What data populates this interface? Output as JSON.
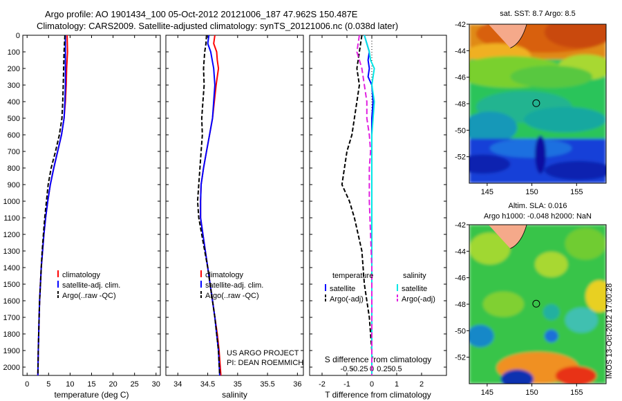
{
  "header": {
    "line1": "Argo profile: AO 1901434_100 05-Oct-2012 20121006_187 47.962S 150.487E",
    "line2": "Climatology: CARS2009. Satellite-adjusted climatology: synTS_20121006.nc (0.038d later)"
  },
  "credits": {
    "line1": "US ARGO PROJECT",
    "line2": "PI: DEAN ROEMMICH"
  },
  "stamp": "IMOS 13-Oct-2012 17:00:28",
  "colors": {
    "red": "#ff0000",
    "blue": "#0000ff",
    "black": "#000000",
    "cyan": "#00e5e5",
    "magenta": "#e020e0"
  },
  "chart_data": [
    {
      "type": "line",
      "name": "temperature-profile",
      "xlabel": "temperature (deg C)",
      "ylabel": "",
      "xlim": [
        -1,
        31
      ],
      "ylim": [
        2050,
        0
      ],
      "xticks": [
        0,
        5,
        10,
        15,
        20,
        25,
        30
      ],
      "yticks": [
        0,
        100,
        200,
        300,
        400,
        500,
        600,
        700,
        800,
        900,
        1000,
        1100,
        1200,
        1300,
        1400,
        1500,
        1600,
        1700,
        1800,
        1900,
        2000
      ],
      "legend": [
        "climatology",
        "satellite-adj. clim.",
        "Argo(..raw -QC)"
      ],
      "series": [
        {
          "name": "climatology",
          "color": "red",
          "dash": "",
          "points": [
            [
              9.3,
              0
            ],
            [
              9.4,
              100
            ],
            [
              9.2,
              200
            ],
            [
              9.1,
              300
            ],
            [
              8.9,
              400
            ],
            [
              8.6,
              500
            ],
            [
              8.0,
              600
            ],
            [
              7.1,
              700
            ],
            [
              6.2,
              800
            ],
            [
              5.4,
              900
            ],
            [
              4.8,
              1000
            ],
            [
              4.3,
              1100
            ],
            [
              3.9,
              1200
            ],
            [
              3.6,
              1300
            ],
            [
              3.3,
              1400
            ],
            [
              3.1,
              1500
            ],
            [
              2.9,
              1600
            ],
            [
              2.8,
              1700
            ],
            [
              2.7,
              1800
            ],
            [
              2.6,
              1900
            ],
            [
              2.5,
              2050
            ]
          ]
        },
        {
          "name": "satellite-adj. clim.",
          "color": "blue",
          "dash": "",
          "points": [
            [
              8.9,
              0
            ],
            [
              8.9,
              100
            ],
            [
              8.9,
              200
            ],
            [
              8.9,
              300
            ],
            [
              8.8,
              400
            ],
            [
              8.6,
              500
            ],
            [
              8.0,
              600
            ],
            [
              7.1,
              700
            ],
            [
              6.2,
              800
            ],
            [
              5.4,
              900
            ],
            [
              4.8,
              1000
            ],
            [
              4.3,
              1100
            ],
            [
              3.9,
              1200
            ],
            [
              3.6,
              1300
            ],
            [
              3.3,
              1400
            ],
            [
              3.1,
              1500
            ],
            [
              2.9,
              1600
            ],
            [
              2.8,
              1700
            ],
            [
              2.7,
              1800
            ],
            [
              2.6,
              1900
            ],
            [
              2.5,
              2050
            ]
          ]
        },
        {
          "name": "Argo(..raw -QC)",
          "color": "black",
          "dash": "6,3",
          "points": [
            [
              8.8,
              0
            ],
            [
              8.6,
              100
            ],
            [
              8.5,
              200
            ],
            [
              8.4,
              300
            ],
            [
              8.3,
              400
            ],
            [
              8.1,
              500
            ],
            [
              7.5,
              600
            ],
            [
              6.6,
              700
            ],
            [
              5.6,
              800
            ],
            [
              4.9,
              900
            ],
            [
              4.5,
              1000
            ],
            [
              4.1,
              1100
            ],
            [
              3.8,
              1200
            ],
            [
              3.5,
              1300
            ],
            [
              3.3,
              1400
            ],
            [
              3.1,
              1500
            ],
            [
              2.9,
              1600
            ],
            [
              2.8,
              1700
            ],
            [
              2.7,
              1800
            ],
            [
              2.6,
              1900
            ],
            [
              2.5,
              2050
            ]
          ]
        }
      ]
    },
    {
      "type": "line",
      "name": "salinity-profile",
      "xlabel": "salinity",
      "ylabel": "",
      "xlim": [
        33.8,
        36.1
      ],
      "ylim": [
        2050,
        0
      ],
      "xticks": [
        34,
        34.5,
        35,
        35.5,
        36
      ],
      "xticklabels": [
        "34",
        "34.5",
        "35",
        "35.5",
        "36"
      ],
      "legend": [
        "climatology",
        "satellite-adj. clim.",
        "Argo(..raw -QC)"
      ],
      "series": [
        {
          "name": "climatology",
          "color": "red",
          "dash": "",
          "points": [
            [
              34.62,
              0
            ],
            [
              34.6,
              50
            ],
            [
              34.65,
              100
            ],
            [
              34.66,
              150
            ],
            [
              34.68,
              200
            ],
            [
              34.64,
              300
            ],
            [
              34.61,
              400
            ],
            [
              34.58,
              500
            ],
            [
              34.53,
              600
            ],
            [
              34.48,
              700
            ],
            [
              34.43,
              800
            ],
            [
              34.39,
              900
            ],
            [
              34.38,
              1000
            ],
            [
              34.38,
              1100
            ],
            [
              34.42,
              1200
            ],
            [
              34.46,
              1300
            ],
            [
              34.5,
              1400
            ],
            [
              34.54,
              1500
            ],
            [
              34.58,
              1600
            ],
            [
              34.62,
              1700
            ],
            [
              34.66,
              1800
            ],
            [
              34.69,
              1900
            ],
            [
              34.72,
              2050
            ]
          ]
        },
        {
          "name": "satellite-adj. clim.",
          "color": "blue",
          "dash": "",
          "points": [
            [
              34.52,
              0
            ],
            [
              34.5,
              50
            ],
            [
              34.55,
              100
            ],
            [
              34.6,
              200
            ],
            [
              34.62,
              300
            ],
            [
              34.6,
              400
            ],
            [
              34.58,
              500
            ],
            [
              34.53,
              600
            ],
            [
              34.48,
              700
            ],
            [
              34.43,
              800
            ],
            [
              34.39,
              900
            ],
            [
              34.38,
              1000
            ],
            [
              34.38,
              1100
            ],
            [
              34.42,
              1200
            ],
            [
              34.46,
              1300
            ],
            [
              34.5,
              1400
            ],
            [
              34.54,
              1500
            ],
            [
              34.58,
              1600
            ],
            [
              34.62,
              1700
            ],
            [
              34.65,
              1800
            ],
            [
              34.68,
              1900
            ],
            [
              34.7,
              2050
            ]
          ]
        },
        {
          "name": "Argo(..raw -QC)",
          "color": "black",
          "dash": "6,3",
          "points": [
            [
              34.48,
              0
            ],
            [
              34.47,
              50
            ],
            [
              34.45,
              100
            ],
            [
              34.43,
              200
            ],
            [
              34.44,
              300
            ],
            [
              34.42,
              400
            ],
            [
              34.4,
              500
            ],
            [
              34.41,
              600
            ],
            [
              34.39,
              700
            ],
            [
              34.37,
              800
            ],
            [
              34.35,
              900
            ],
            [
              34.33,
              1000
            ],
            [
              34.35,
              1100
            ],
            [
              34.4,
              1200
            ],
            [
              34.45,
              1300
            ],
            [
              34.5,
              1400
            ],
            [
              34.54,
              1500
            ],
            [
              34.58,
              1600
            ],
            [
              34.62,
              1700
            ],
            [
              34.65,
              1800
            ],
            [
              34.68,
              1900
            ],
            [
              34.7,
              2050
            ]
          ]
        }
      ]
    },
    {
      "type": "line",
      "name": "difference-profile",
      "xlabel": "T difference from climatology",
      "top_label": "S difference from climatology",
      "ylabel": "",
      "xlim": [
        -2.5,
        3
      ],
      "ylim": [
        2050,
        0
      ],
      "xticks": [
        -2,
        -1,
        0,
        1,
        2
      ],
      "xticklabels": [
        "-2",
        "-1",
        "0",
        "1",
        "2"
      ],
      "sticks": [
        -1,
        -0.5,
        0,
        0.5,
        1
      ],
      "sticklabels": [
        "-0.5",
        "-0.25",
        "0",
        "0.25",
        "0.5"
      ],
      "legend_temperature": {
        "heading": "temperature",
        "items": [
          "satellite",
          "Argo(-adj)"
        ]
      },
      "legend_salinity": {
        "heading": "salinity",
        "items": [
          "satellite",
          "Argo(-adj)"
        ]
      },
      "series": [
        {
          "name": "temperature satellite",
          "color": "blue",
          "dash": "",
          "points": [
            [
              -0.3,
              0
            ],
            [
              -0.2,
              50
            ],
            [
              -0.1,
              100
            ],
            [
              -0.15,
              150
            ],
            [
              -0.1,
              200
            ],
            [
              -0.15,
              250
            ],
            [
              0.0,
              300
            ],
            [
              0.05,
              400
            ],
            [
              0.0,
              500
            ],
            [
              0.0,
              700
            ],
            [
              0.0,
              1000
            ],
            [
              0.0,
              2050
            ]
          ]
        },
        {
          "name": "temperature Argo(-adj)",
          "color": "black",
          "dash": "6,3",
          "points": [
            [
              -0.4,
              0
            ],
            [
              -0.5,
              100
            ],
            [
              -0.6,
              200
            ],
            [
              -0.5,
              300
            ],
            [
              -0.6,
              400
            ],
            [
              -0.7,
              500
            ],
            [
              -0.8,
              600
            ],
            [
              -1.0,
              700
            ],
            [
              -1.1,
              800
            ],
            [
              -1.2,
              900
            ],
            [
              -0.9,
              1000
            ],
            [
              -0.7,
              1100
            ],
            [
              -0.4,
              1300
            ],
            [
              -0.3,
              1500
            ],
            [
              -0.1,
              1700
            ],
            [
              0.0,
              1900
            ],
            [
              0.0,
              2050
            ]
          ]
        },
        {
          "name": "salinity satellite",
          "color": "cyan",
          "dash": "",
          "points": [
            [
              -0.3,
              0
            ],
            [
              -0.1,
              100
            ],
            [
              -0.05,
              150
            ],
            [
              0.1,
              200
            ],
            [
              0.0,
              300
            ],
            [
              0.1,
              400
            ],
            [
              0.05,
              500
            ],
            [
              0.0,
              600
            ],
            [
              0.0,
              800
            ],
            [
              0.0,
              1000
            ],
            [
              0.0,
              1500
            ],
            [
              0.0,
              2050
            ]
          ]
        },
        {
          "name": "salinity Argo(-adj)",
          "color": "magenta",
          "dash": "8,4",
          "points": [
            [
              -0.5,
              0
            ],
            [
              -0.6,
              100
            ],
            [
              -0.4,
              200
            ],
            [
              -0.3,
              300
            ],
            [
              -0.2,
              400
            ],
            [
              -0.2,
              500
            ],
            [
              -0.1,
              600
            ],
            [
              -0.05,
              700
            ],
            [
              -0.1,
              800
            ],
            [
              -0.1,
              900
            ],
            [
              -0.1,
              1000
            ],
            [
              -0.05,
              1200
            ],
            [
              0.0,
              1400
            ],
            [
              0.0,
              2050
            ]
          ]
        }
      ]
    },
    {
      "type": "heatmap",
      "name": "sst-map",
      "title": "sat. SST: 8.7  Argo: 8.5",
      "xlim": [
        143,
        158.3
      ],
      "ylim": [
        -54,
        -42
      ],
      "xticks": [
        145,
        150,
        155
      ],
      "yticks": [
        -42,
        -44,
        -46,
        -48,
        -50,
        -52
      ],
      "float_position": {
        "lon": 150.487,
        "lat": -47.962
      }
    },
    {
      "type": "heatmap",
      "name": "sla-map",
      "title_line1": "Altim. SLA: 0.016",
      "title_line2": "Argo h1000: -0.048 h2000: NaN",
      "xlim": [
        143,
        158.3
      ],
      "ylim": [
        -54,
        -42
      ],
      "xticks": [
        145,
        150,
        155
      ],
      "yticks": [
        -42,
        -44,
        -46,
        -48,
        -50,
        -52
      ],
      "float_position": {
        "lon": 150.487,
        "lat": -47.962
      }
    }
  ]
}
